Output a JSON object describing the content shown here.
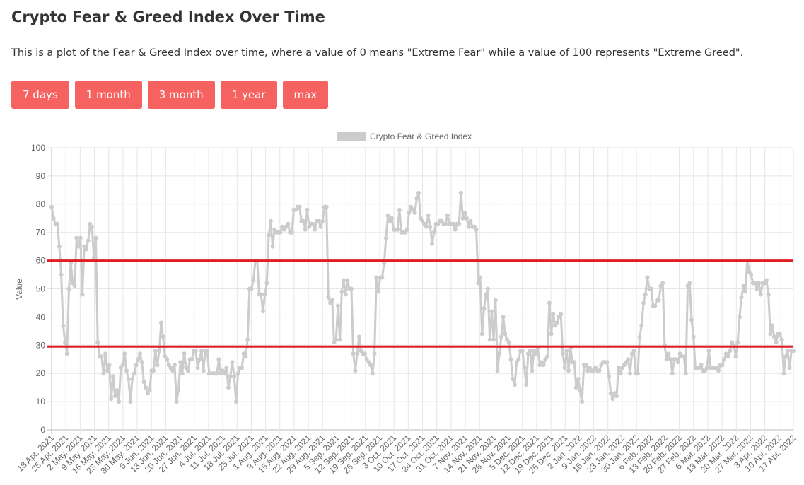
{
  "header": {
    "title": "Crypto Fear & Greed Index Over Time",
    "description": "This is a plot of the Fear & Greed Index over time, where a value of 0 means \"Extreme Fear\" while a value of 100 represents \"Extreme Greed\"."
  },
  "range_buttons": [
    {
      "label": "7 days"
    },
    {
      "label": "1 month"
    },
    {
      "label": "3 month"
    },
    {
      "label": "1 year"
    },
    {
      "label": "max"
    }
  ],
  "colors": {
    "button": "#f6625f",
    "line": "#cccccc",
    "threshold": "#e21c24",
    "grid": "#e6e6e6"
  },
  "chart_data": {
    "type": "line",
    "title": "",
    "xlabel": "",
    "ylabel": "Value",
    "ylim": [
      0,
      100
    ],
    "yticks": [
      0,
      10,
      20,
      30,
      40,
      50,
      60,
      70,
      80,
      90,
      100
    ],
    "legend": {
      "position": "top-center",
      "label": "Crypto Fear & Greed Index"
    },
    "grid": true,
    "x_tick_labels": [
      "18 Apr. 2021",
      "25 Apr. 2021",
      "2 May. 2021",
      "9 May. 2021",
      "16 May. 2021",
      "23 May. 2021",
      "30 May. 2021",
      "6 Jun. 2021",
      "13 Jun. 2021",
      "20 Jun. 2021",
      "27 Jun. 2021",
      "4 Jul. 2021",
      "11 Jul. 2021",
      "18 Jul. 2021",
      "25 Jul. 2021",
      "1 Aug. 2021",
      "8 Aug. 2021",
      "15 Aug. 2021",
      "22 Aug. 2021",
      "29 Aug. 2021",
      "5 Sep. 2021",
      "12 Sep. 2021",
      "19 Sep. 2021",
      "26 Sep. 2021",
      "3 Oct. 2021",
      "10 Oct. 2021",
      "17 Oct. 2021",
      "24 Oct. 2021",
      "31 Oct. 2021",
      "7 Nov. 2021",
      "14 Nov. 2021",
      "21 Nov. 2021",
      "28 Nov. 2021",
      "5 Dec. 2021",
      "12 Dec. 2021",
      "19 Dec. 2021",
      "26 Dec. 2021",
      "2 Jan. 2022",
      "9 Jan. 2022",
      "16 Jan. 2022",
      "23 Jan. 2022",
      "30 Jan. 2022",
      "6 Feb. 2022",
      "13 Feb. 2022",
      "20 Feb. 2022",
      "27 Feb. 2022",
      "6 Mar. 2022",
      "13 Mar. 2022",
      "20 Mar. 2022",
      "27 Mar. 2022",
      "3 Apr. 2022",
      "10 Apr. 2022",
      "17 Apr. 2022"
    ],
    "threshold_lines": [
      60,
      29.5
    ],
    "series": [
      {
        "name": "Crypto Fear & Greed Index",
        "values": [
          79,
          75,
          73,
          73,
          65,
          55,
          37,
          31,
          27,
          50,
          59,
          52,
          51,
          68,
          65,
          68,
          48,
          65,
          64,
          67,
          73,
          72,
          61,
          68,
          31,
          26,
          26,
          20,
          27,
          21,
          23,
          11,
          19,
          12,
          14,
          10,
          22,
          23,
          27,
          21,
          18,
          10,
          18,
          20,
          23,
          25,
          27,
          24,
          17,
          15,
          13,
          14,
          21,
          21,
          28,
          23,
          28,
          38,
          33,
          26,
          25,
          23,
          22,
          21,
          23,
          10,
          14,
          24,
          20,
          27,
          22,
          21,
          25,
          25,
          28,
          28,
          22,
          25,
          28,
          21,
          28,
          28,
          20,
          20,
          20,
          20,
          20,
          25,
          20,
          21,
          20,
          22,
          15,
          19,
          24,
          19,
          10,
          20,
          22,
          22,
          27,
          26,
          32,
          50,
          50,
          53,
          60,
          60,
          48,
          48,
          42,
          48,
          52,
          69,
          74,
          65,
          71,
          70,
          70,
          70,
          72,
          71,
          72,
          73,
          70,
          70,
          78,
          78,
          79,
          79,
          74,
          74,
          71,
          78,
          72,
          73,
          73,
          71,
          74,
          74,
          72,
          74,
          79,
          79,
          47,
          45,
          46,
          31,
          32,
          44,
          32,
          49,
          53,
          48,
          53,
          50,
          50,
          27,
          21,
          27,
          33,
          28,
          27,
          27,
          25,
          24,
          23,
          20,
          27,
          54,
          49,
          54,
          54,
          59,
          68,
          76,
          74,
          75,
          71,
          71,
          71,
          78,
          70,
          70,
          70,
          71,
          77,
          79,
          78,
          77,
          82,
          84,
          75,
          74,
          73,
          72,
          76,
          72,
          66,
          70,
          73,
          73,
          74,
          74,
          73,
          73,
          76,
          73,
          73,
          73,
          71,
          73,
          73,
          84,
          75,
          77,
          75,
          72,
          74,
          72,
          72,
          71,
          52,
          54,
          34,
          43,
          48,
          50,
          32,
          42,
          32,
          46,
          21,
          27,
          33,
          40,
          34,
          32,
          31,
          25,
          18,
          16,
          24,
          25,
          28,
          28,
          22,
          16,
          27,
          28,
          21,
          28,
          27,
          29,
          23,
          24,
          23,
          25,
          26,
          45,
          34,
          41,
          37,
          38,
          40,
          41,
          27,
          22,
          28,
          21,
          29,
          24,
          24,
          15,
          18,
          14,
          10,
          23,
          23,
          21,
          22,
          21,
          21,
          22,
          21,
          21,
          23,
          24,
          24,
          24,
          19,
          13,
          11,
          13,
          12,
          22,
          20,
          22,
          23,
          24,
          25,
          20,
          27,
          28,
          20,
          20,
          33,
          37,
          45,
          48,
          54,
          50,
          50,
          44,
          44,
          46,
          46,
          51,
          52,
          30,
          25,
          27,
          25,
          20,
          25,
          25,
          24,
          27,
          26,
          26,
          20,
          51,
          52,
          39,
          33,
          22,
          22,
          22,
          23,
          21,
          21,
          22,
          28,
          22,
          22,
          22,
          22,
          21,
          23,
          23,
          25,
          27,
          26,
          28,
          31,
          30,
          26,
          31,
          40,
          47,
          51,
          49,
          60,
          56,
          55,
          52,
          52,
          50,
          52,
          48,
          52,
          52,
          53,
          48,
          34,
          37,
          33,
          31,
          34,
          34,
          32,
          20,
          26,
          28,
          22,
          28,
          28
        ]
      }
    ]
  }
}
